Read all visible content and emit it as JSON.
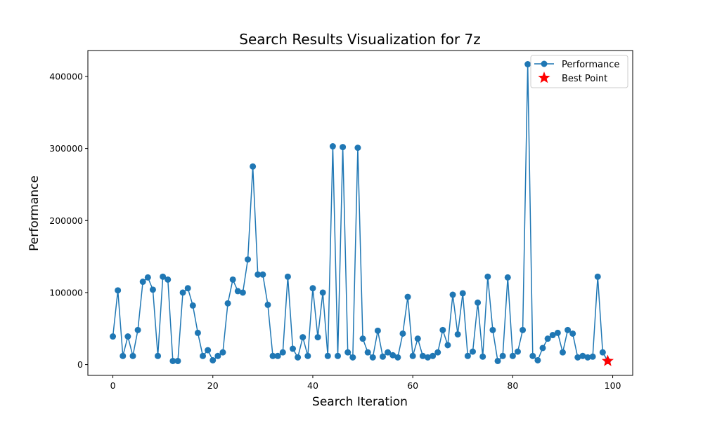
{
  "chart_data": {
    "type": "line",
    "title": "Search Results Visualization for 7z",
    "xlabel": "Search Iteration",
    "ylabel": "Performance",
    "xlim": [
      -5,
      104
    ],
    "ylim": [
      -15000,
      436000
    ],
    "xticks": [
      0,
      20,
      40,
      60,
      80,
      100
    ],
    "yticks": [
      0,
      100000,
      200000,
      300000,
      400000
    ],
    "grid": false,
    "legend_position": "top-right",
    "series": [
      {
        "name": "Performance",
        "color": "#1f77b4",
        "marker": "circle",
        "x": [
          0,
          1,
          2,
          3,
          4,
          5,
          6,
          7,
          8,
          9,
          10,
          11,
          12,
          13,
          14,
          15,
          16,
          17,
          18,
          19,
          20,
          21,
          22,
          23,
          24,
          25,
          26,
          27,
          28,
          29,
          30,
          31,
          32,
          33,
          34,
          35,
          36,
          37,
          38,
          39,
          40,
          41,
          42,
          43,
          44,
          45,
          46,
          47,
          48,
          49,
          50,
          51,
          52,
          53,
          54,
          55,
          56,
          57,
          58,
          59,
          60,
          61,
          62,
          63,
          64,
          65,
          66,
          67,
          68,
          69,
          70,
          71,
          72,
          73,
          74,
          75,
          76,
          77,
          78,
          79,
          80,
          81,
          82,
          83,
          84,
          85,
          86,
          87,
          88,
          89,
          90,
          91,
          92,
          93,
          94,
          95,
          96,
          97,
          98,
          99
        ],
        "values": [
          39000,
          103000,
          12000,
          39000,
          12000,
          48000,
          115000,
          121000,
          104000,
          12000,
          122000,
          118000,
          5000,
          5000,
          100000,
          106000,
          82000,
          44000,
          12000,
          20000,
          6000,
          12000,
          17000,
          85000,
          118000,
          102000,
          100000,
          146000,
          275000,
          125000,
          125000,
          83000,
          12000,
          12000,
          17000,
          122000,
          22000,
          10000,
          38000,
          12000,
          106000,
          38000,
          100000,
          12000,
          303000,
          12000,
          302000,
          17000,
          10000,
          301000,
          36000,
          17000,
          10000,
          47000,
          11000,
          17000,
          13000,
          10000,
          43000,
          94000,
          12000,
          36000,
          12000,
          10000,
          12000,
          17000,
          48000,
          27000,
          97000,
          42000,
          99000,
          12000,
          18000,
          86000,
          11000,
          122000,
          48000,
          5000,
          12000,
          121000,
          12000,
          18000,
          48000,
          417000,
          12000,
          6000,
          23000,
          36000,
          41000,
          44000,
          17000,
          48000,
          43000,
          10000,
          12000,
          10000,
          11000,
          122000,
          17000,
          5000
        ]
      },
      {
        "name": "Best Point",
        "color": "#ff0000",
        "marker": "star",
        "x": [
          99
        ],
        "values": [
          5000
        ]
      }
    ]
  }
}
